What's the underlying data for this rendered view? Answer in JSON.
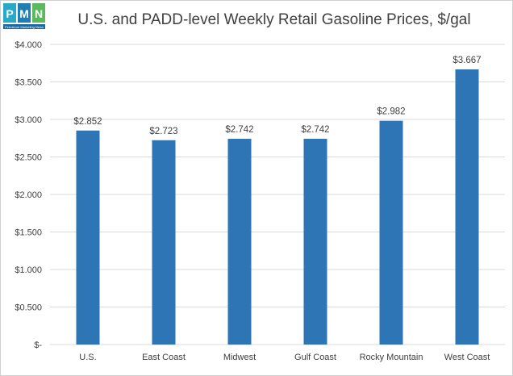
{
  "logo": {
    "icon": "pmn-logo-icon",
    "letters": [
      "P",
      "M",
      "N"
    ],
    "caption": "Petroleum Marketing News",
    "colors": [
      "#2aa8c6",
      "#1e7fb0",
      "#5cb85c",
      "#1b6aa0"
    ]
  },
  "chart_data": {
    "type": "bar",
    "title": "U.S. and PADD-level Weekly Retail Gasoline Prices, $/gal",
    "categories": [
      "U.S.",
      "East Coast",
      "Midwest",
      "Gulf Coast",
      "Rocky Mountain",
      "West Coast"
    ],
    "values": [
      2.852,
      2.723,
      2.742,
      2.742,
      2.982,
      3.667
    ],
    "data_labels": [
      "$2.852",
      "$2.723",
      "$2.742",
      "$2.742",
      "$2.982",
      "$3.667"
    ],
    "yticks": [
      0,
      0.5,
      1.0,
      1.5,
      2.0,
      2.5,
      3.0,
      3.5,
      4.0
    ],
    "ytick_labels": [
      "$-",
      "$0.500",
      "$1.000",
      "$1.500",
      "$2.000",
      "$2.500",
      "$3.000",
      "$3.500",
      "$4.000"
    ],
    "ylim": [
      0,
      4
    ],
    "xlabel": "",
    "ylabel": "",
    "grid": true,
    "legend": "none",
    "bar_color": "#2e75b6",
    "grid_color": "#d9d9d9"
  }
}
